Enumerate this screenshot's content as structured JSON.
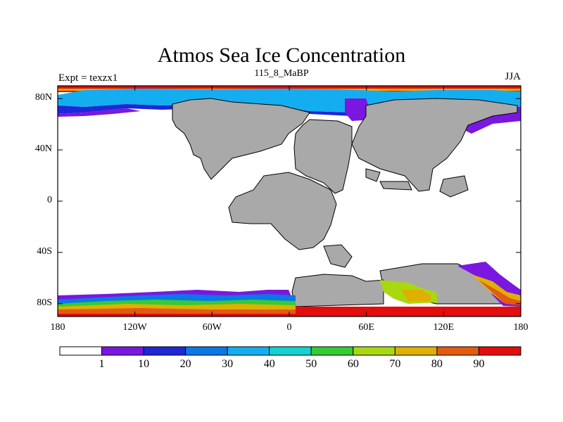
{
  "title": "Atmos Sea Ice Concentration",
  "left_label": "Expt = texzx1",
  "center_label": "115_8_MaBP",
  "right_label": "JJA",
  "map": {
    "variable": "Sea ice concentration",
    "units": "%",
    "projection": "cylindrical equidistant",
    "lon_range": [
      -180,
      180
    ],
    "lat_range": [
      -90,
      90
    ],
    "lat_ticks": [
      {
        "value": 80,
        "label": "80N"
      },
      {
        "value": 40,
        "label": "40N"
      },
      {
        "value": 0,
        "label": "0"
      },
      {
        "value": -40,
        "label": "40S"
      },
      {
        "value": -80,
        "label": "80S"
      }
    ],
    "lon_ticks": [
      {
        "value": -180,
        "label": "180"
      },
      {
        "value": -120,
        "label": "120W"
      },
      {
        "value": -60,
        "label": "60W"
      },
      {
        "value": 0,
        "label": "0"
      },
      {
        "value": 60,
        "label": "60E"
      },
      {
        "value": 120,
        "label": "120E"
      },
      {
        "value": 180,
        "label": "180"
      }
    ]
  },
  "colorbar": {
    "levels": [
      "1",
      "10",
      "20",
      "30",
      "40",
      "50",
      "60",
      "70",
      "80",
      "90"
    ],
    "colors": [
      "#ffffff",
      "#7a17e0",
      "#1e28d6",
      "#0a78e6",
      "#14aef0",
      "#12d2d2",
      "#33cc33",
      "#a8d810",
      "#e0b000",
      "#e45a10",
      "#e40c0c"
    ]
  },
  "land_color": "#a9a9a9"
}
